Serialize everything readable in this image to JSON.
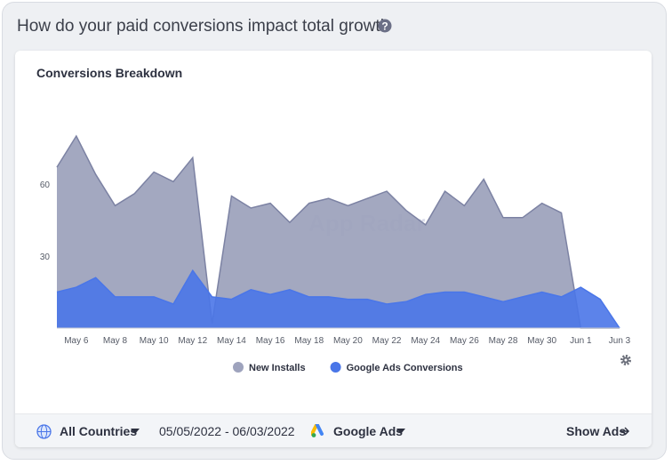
{
  "header": {
    "title": "How do your paid conversions impact total growth"
  },
  "chart_data": {
    "type": "area",
    "title": "Conversions Breakdown",
    "watermark": "App Radar",
    "categories": [
      null,
      "May 6",
      null,
      "May 8",
      null,
      "May 10",
      null,
      "May 12",
      null,
      "May 14",
      null,
      "May 16",
      null,
      "May 18",
      null,
      "May 20",
      null,
      "May 22",
      null,
      "May 24",
      null,
      "May 26",
      null,
      "May 28",
      null,
      "May 30",
      null,
      "Jun 1",
      null,
      "Jun 3"
    ],
    "series": [
      {
        "name": "New Installs",
        "color": "#9ea3bd",
        "values": [
          67,
          80,
          64,
          51,
          56,
          65,
          61,
          71,
          2,
          55,
          50,
          52,
          44,
          52,
          54,
          51,
          54,
          57,
          49,
          43,
          57,
          51,
          62,
          46,
          46,
          52,
          48,
          0,
          0,
          0
        ]
      },
      {
        "name": "Google Ads Conversions",
        "color": "#4a76e8",
        "values": [
          15,
          17,
          21,
          13,
          13,
          13,
          10,
          24,
          13,
          12,
          16,
          14,
          16,
          13,
          13,
          12,
          12,
          10,
          11,
          14,
          15,
          15,
          13,
          11,
          13,
          15,
          13,
          17,
          12,
          0
        ]
      }
    ],
    "ylim": [
      0,
      100
    ],
    "yticks": [
      30,
      60
    ]
  },
  "footer": {
    "country": "All Countries",
    "date_range": "05/05/2022 - 06/03/2022",
    "network": "Google Ads",
    "action": "Show Ads"
  }
}
